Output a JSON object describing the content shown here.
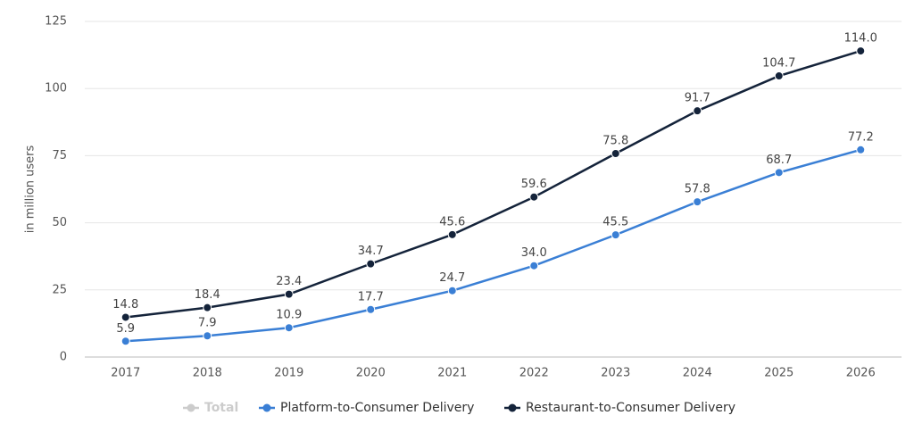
{
  "chart_data": {
    "type": "line",
    "y_label": "in million users",
    "categories": [
      "2017",
      "2018",
      "2019",
      "2020",
      "2021",
      "2022",
      "2023",
      "2024",
      "2025",
      "2026"
    ],
    "ylim": [
      0,
      125
    ],
    "yticks": [
      0,
      25,
      50,
      75,
      100,
      125
    ],
    "grid": true,
    "legend": "bottom",
    "series": [
      {
        "name": "Total",
        "color": "#cccccc",
        "visible": false,
        "values": [
          null,
          null,
          null,
          null,
          null,
          null,
          null,
          null,
          null,
          null
        ]
      },
      {
        "name": "Platform-to-Consumer Delivery",
        "color": "#3a7fd5",
        "values": [
          5.9,
          7.9,
          10.9,
          17.7,
          24.7,
          34.0,
          45.5,
          57.8,
          68.7,
          77.2
        ],
        "value_labels": [
          "5.9",
          "7.9",
          "10.9",
          "17.7",
          "24.7",
          "34.0",
          "45.5",
          "57.8",
          "68.7",
          "77.2"
        ]
      },
      {
        "name": "Restaurant-to-Consumer Delivery",
        "color": "#14233a",
        "values": [
          14.8,
          18.4,
          23.4,
          34.7,
          45.6,
          59.6,
          75.8,
          91.7,
          104.7,
          114.0
        ],
        "value_labels": [
          "14.8",
          "18.4",
          "23.4",
          "34.7",
          "45.6",
          "59.6",
          "75.8",
          "91.7",
          "104.7",
          "114.0"
        ]
      }
    ]
  }
}
